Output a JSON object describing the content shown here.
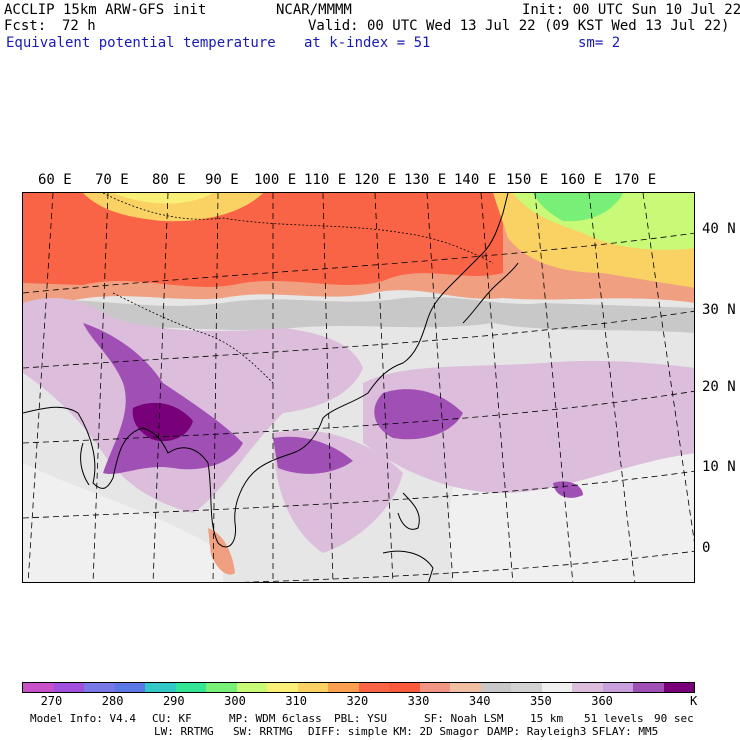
{
  "header": {
    "model": "ACCLIP 15km ARW-GFS init",
    "center": "NCAR/MMMM",
    "init": "Init: 00 UTC Sun 10 Jul 22",
    "fcst_label": "Fcst:",
    "fcst_value": "72 h",
    "valid": "Valid: 00 UTC Wed 13 Jul 22 (09 KST Wed 13 Jul 22)",
    "field": "Equivalent potential temperature",
    "level": "at k-index =  51",
    "smoothing": "sm= 2"
  },
  "map": {
    "lon_labels": [
      "60 E",
      "70 E",
      "80 E",
      "90 E",
      "100 E",
      "110 E",
      "120 E",
      "130 E",
      "140 E",
      "150 E",
      "160 E",
      "170 E"
    ],
    "lat_labels": [
      "40 N",
      "30 N",
      "20 N",
      "10 N",
      "0"
    ]
  },
  "colorbar": {
    "colors": [
      "#c850c8",
      "#a050dc",
      "#7878e6",
      "#5a78e6",
      "#32c8c8",
      "#32e696",
      "#78f078",
      "#c8fa78",
      "#faf078",
      "#fad264",
      "#faa050",
      "#fa6446",
      "#fa5a3c",
      "#f09682",
      "#f0bea0",
      "#c8c8c8",
      "#d2d2d2",
      "#f0f0f0",
      "#dcbedc",
      "#c8a0dc",
      "#a050b4",
      "#780078"
    ],
    "labels": [
      "270",
      "280",
      "290",
      "300",
      "310",
      "320",
      "330",
      "340",
      "350",
      "360"
    ],
    "unit": "K"
  },
  "footer": {
    "line1": [
      "Model Info: V4.4",
      "CU: KF",
      "MP: WDM 6class",
      "PBL: YSU",
      "SF: Noah LSM",
      "15 km",
      "51 levels",
      "90 sec"
    ],
    "line2": [
      "LW: RRTMG",
      "SW: RRTMG",
      "DIFF: simple",
      "KM: 2D Smagor",
      "DAMP: Rayleigh3",
      "SFLAY: MM5"
    ]
  }
}
